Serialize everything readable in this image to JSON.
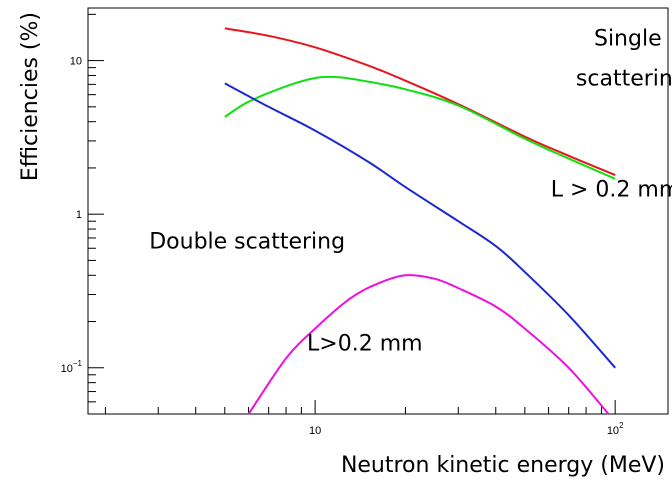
{
  "chart_data": {
    "type": "line",
    "xlabel": "Neutron kinetic energy (MeV)",
    "ylabel": "Efficiencies (%)",
    "xscale": "log",
    "yscale": "log",
    "xlim": [
      1.75,
      150
    ],
    "ylim": [
      0.05,
      22
    ],
    "grid": false,
    "x_ticks": [
      {
        "value": 10,
        "base": "10",
        "exp": ""
      },
      {
        "value": 100,
        "base": "10",
        "exp": "2"
      }
    ],
    "y_ticks": [
      {
        "value": 0.1,
        "base": "10",
        "exp": "−1"
      },
      {
        "value": 1,
        "base": "1",
        "exp": ""
      },
      {
        "value": 10,
        "base": "10",
        "exp": ""
      }
    ],
    "series": [
      {
        "color": "#e8141c",
        "x": [
          5,
          7,
          10,
          15,
          20,
          30,
          50,
          70,
          100
        ],
        "y": [
          16.2,
          14.5,
          12.2,
          9.3,
          7.4,
          5.2,
          3.2,
          2.4,
          1.8
        ]
      },
      {
        "color": "#10e010",
        "x": [
          5,
          6,
          8,
          10,
          12,
          15,
          20,
          30,
          50,
          70,
          100
        ],
        "y": [
          4.3,
          5.4,
          6.8,
          7.7,
          7.8,
          7.3,
          6.5,
          5.1,
          3.1,
          2.3,
          1.7
        ]
      },
      {
        "color": "#1a2ad0",
        "x": [
          5,
          7,
          10,
          15,
          20,
          30,
          40,
          50,
          70,
          100
        ],
        "y": [
          7.1,
          5.0,
          3.5,
          2.2,
          1.5,
          0.9,
          0.62,
          0.42,
          0.22,
          0.1
        ]
      },
      {
        "color": "#ee10e0",
        "x": [
          6,
          8,
          10,
          13,
          16,
          20,
          25,
          30,
          40,
          50,
          70,
          95
        ],
        "y": [
          0.05,
          0.115,
          0.18,
          0.28,
          0.35,
          0.4,
          0.38,
          0.33,
          0.25,
          0.18,
          0.1,
          0.05
        ]
      }
    ],
    "annotations": [
      {
        "id": "single-1",
        "text": "Single",
        "x": 85,
        "y": 12.5
      },
      {
        "id": "single-2",
        "text": "scattering",
        "x": 74,
        "y": 6.9
      },
      {
        "id": "l-single",
        "text": "L > 0.2 mm",
        "x": 61,
        "y": 1.3
      },
      {
        "id": "double",
        "text": "Double scattering",
        "x": 2.8,
        "y": 0.6
      },
      {
        "id": "l-double",
        "text": "L>0.2 mm",
        "x": 9.4,
        "y": 0.13
      }
    ]
  }
}
